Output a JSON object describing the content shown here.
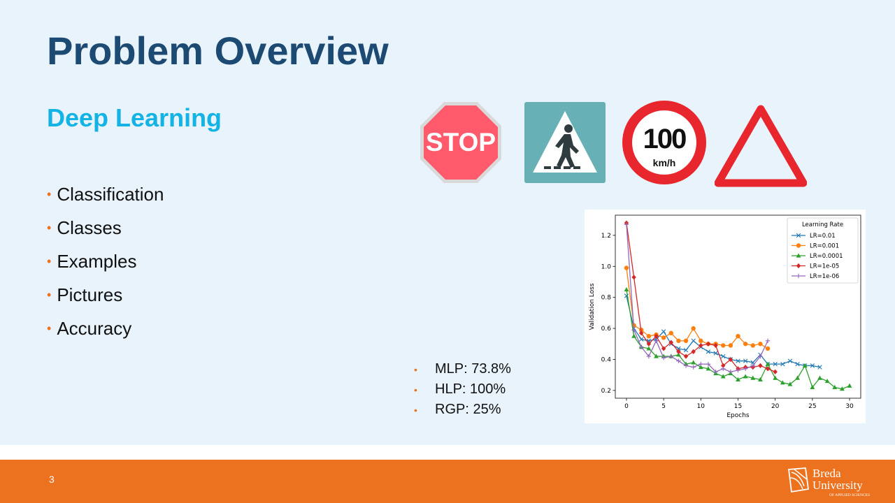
{
  "slide": {
    "title": "Problem Overview",
    "subtitle": "Deep Learning",
    "bullets": [
      "Classification",
      "Classes",
      "Examples",
      "Pictures",
      "Accuracy"
    ],
    "accuracy_items": [
      "MLP: 73.8%",
      "HLP: 100%",
      "RGP: 25%"
    ],
    "page_number": "3"
  },
  "signs": {
    "stop_text": "STOP",
    "speed_value": "100",
    "speed_unit": "km/h"
  },
  "logo": {
    "line1": "Breda",
    "line2": "University",
    "line3": "OF APPLIED SCIENCES"
  },
  "colors": {
    "title": "#1c4a73",
    "subtitle": "#14b3e6",
    "accent": "#ec7220",
    "slide_bg": "#e9f3fb"
  },
  "chart_data": {
    "type": "line",
    "xlabel": "Epochs",
    "ylabel": "Validation Loss",
    "xlim": [
      -1.5,
      31.5
    ],
    "ylim": [
      0.15,
      1.33
    ],
    "xticks": [
      0,
      5,
      10,
      15,
      20,
      25,
      30
    ],
    "yticks": [
      0.2,
      0.4,
      0.6,
      0.8,
      1.0,
      1.2
    ],
    "grid": false,
    "legend": {
      "title": "Learning Rate",
      "position": "top-right"
    },
    "series": [
      {
        "name": "LR=0.01",
        "color": "#1f77b4",
        "marker": "x",
        "values": [
          0.81,
          0.6,
          0.53,
          0.52,
          0.53,
          0.58,
          0.5,
          0.47,
          0.46,
          0.52,
          0.48,
          0.45,
          0.44,
          0.42,
          0.4,
          0.39,
          0.39,
          0.38,
          0.43,
          0.37,
          0.37,
          0.37,
          0.39,
          0.37,
          0.36,
          0.36,
          0.35
        ]
      },
      {
        "name": "LR=0.001",
        "color": "#ff7f0e",
        "marker": "o",
        "values": [
          0.99,
          0.62,
          0.59,
          0.55,
          0.56,
          0.54,
          0.57,
          0.52,
          0.52,
          0.6,
          0.52,
          0.5,
          0.5,
          0.49,
          0.49,
          0.55,
          0.5,
          0.49,
          0.5,
          0.47
        ]
      },
      {
        "name": "LR=0.0001",
        "color": "#2ca02c",
        "marker": "^",
        "values": [
          0.85,
          0.55,
          0.48,
          0.47,
          0.42,
          0.42,
          0.42,
          0.43,
          0.37,
          0.38,
          0.35,
          0.34,
          0.31,
          0.29,
          0.31,
          0.27,
          0.29,
          0.28,
          0.27,
          0.37,
          0.28,
          0.25,
          0.24,
          0.28,
          0.36,
          0.22,
          0.28,
          0.26,
          0.22,
          0.21,
          0.23
        ]
      },
      {
        "name": "LR=1e-05",
        "color": "#d62728",
        "marker": "D",
        "values": [
          1.28,
          0.93,
          0.57,
          0.5,
          0.55,
          0.47,
          0.51,
          0.45,
          0.42,
          0.45,
          0.49,
          0.5,
          0.49,
          0.36,
          0.4,
          0.34,
          0.35,
          0.35,
          0.36,
          0.34,
          0.32
        ]
      },
      {
        "name": "LR=1e-06",
        "color": "#9467bd",
        "marker": "+",
        "values": [
          1.27,
          0.59,
          0.48,
          0.42,
          0.52,
          0.41,
          0.42,
          0.39,
          0.36,
          0.35,
          0.37,
          0.37,
          0.32,
          0.34,
          0.32,
          0.33,
          0.34,
          0.36,
          0.42,
          0.52
        ]
      }
    ]
  }
}
